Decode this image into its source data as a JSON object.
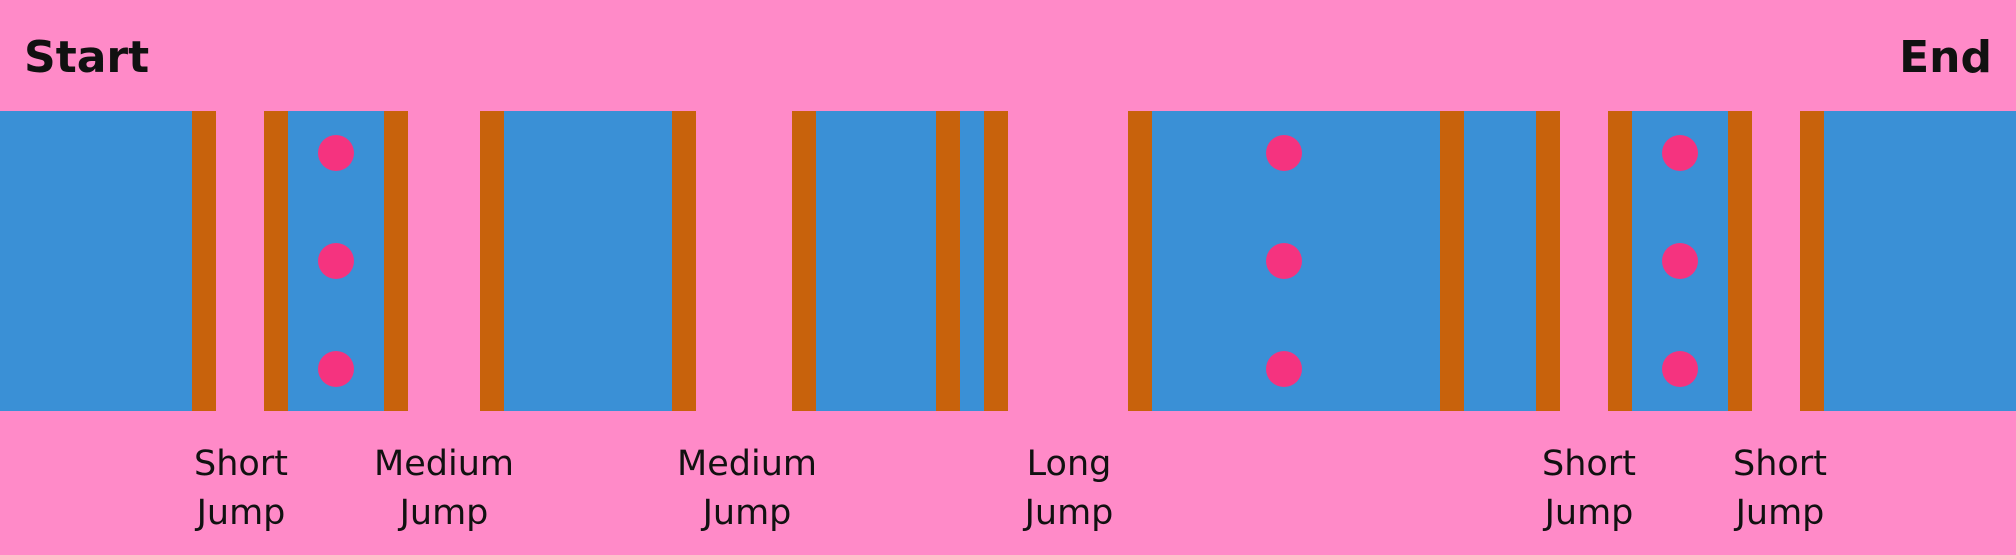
{
  "labels": {
    "start": "Start",
    "end": "End"
  },
  "colors": {
    "sky": "#ff8ac8",
    "platform": "#3a90d6",
    "post": "#c8620c",
    "coin": "#f5337f",
    "text": "#111111"
  },
  "icons": {
    "coin": "coin-icon",
    "post": "post-icon"
  },
  "gaps": [
    {
      "line1": "Short",
      "line2": "Jump"
    },
    {
      "line1": "Medium",
      "line2": "Jump"
    },
    {
      "line1": "Medium",
      "line2": "Jump"
    },
    {
      "line1": "Long",
      "line2": "Jump"
    },
    {
      "line1": "Short",
      "line2": "Jump"
    },
    {
      "line1": "Short",
      "line2": "Jump"
    }
  ]
}
